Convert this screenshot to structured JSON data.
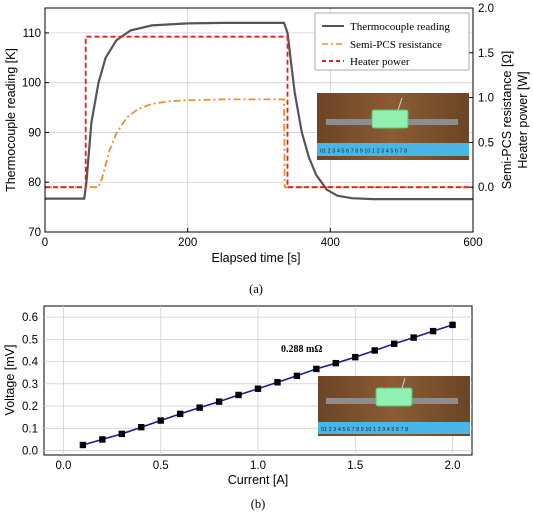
{
  "chart_data": [
    {
      "type": "line",
      "panel_label": "(a)",
      "xlabel": "Elapsed time [s]",
      "ylabel_left": "Thermocouple reading [K]",
      "ylabel_right_1": "Semi-PCS resistance [Ω]",
      "ylabel_right_2": "Heater power [W]",
      "xlim": [
        0,
        600
      ],
      "ylim_left": [
        70,
        115
      ],
      "ylim_right": [
        -0.5,
        2.0
      ],
      "x_ticks": [
        "0",
        "200",
        "400",
        "600"
      ],
      "y_left_ticks": [
        "70",
        "80",
        "90",
        "100",
        "110"
      ],
      "y_right_ticks": [
        "0.0",
        "0.5",
        "1.0",
        "1.5",
        "2.0"
      ],
      "grid": true,
      "legend_position": "top-right",
      "inset_photo": true,
      "ruler_text": "01 2 3 4 5 6 7 8 9 10 1 2 3 4 5 6 7 8",
      "series": [
        {
          "name": "Thermocouple reading",
          "axis": "left",
          "color": "#555555",
          "style": "solid",
          "x": [
            0,
            55,
            58,
            65,
            75,
            85,
            100,
            120,
            150,
            200,
            250,
            300,
            335,
            340,
            345,
            350,
            360,
            370,
            380,
            395,
            410,
            430,
            460,
            500,
            550,
            600
          ],
          "y": [
            76.7,
            76.7,
            80,
            92,
            100,
            105,
            108.5,
            110.5,
            111.5,
            111.9,
            112.0,
            112.0,
            112.0,
            110,
            104,
            98,
            90,
            85,
            81.5,
            78.5,
            77.3,
            76.8,
            76.6,
            76.6,
            76.6,
            76.6
          ]
        },
        {
          "name": "Semi-PCS resistance",
          "axis": "right",
          "color": "#e69035",
          "style": "dashdot",
          "x": [
            0,
            75,
            80,
            90,
            100,
            115,
            130,
            150,
            175,
            200,
            250,
            300,
            335,
            336,
            400,
            600
          ],
          "y": [
            0.0,
            0.0,
            0.1,
            0.4,
            0.6,
            0.78,
            0.87,
            0.93,
            0.96,
            0.97,
            0.98,
            0.98,
            0.98,
            0.0,
            0.0,
            0.0
          ]
        },
        {
          "name": "Heater power",
          "axis": "right",
          "color": "#e02020",
          "style": "dashed",
          "x": [
            0,
            57,
            57,
            340,
            340,
            600
          ],
          "y": [
            0.0,
            0.0,
            1.68,
            1.68,
            0.0,
            0.0
          ]
        }
      ]
    },
    {
      "type": "scatter",
      "panel_label": "(b)",
      "xlabel": "Current [A]",
      "ylabel": "Voltage [mV]",
      "xlim": [
        -0.1,
        2.1
      ],
      "ylim": [
        -0.02,
        0.65
      ],
      "x_ticks": [
        "0.0",
        "0.5",
        "1.0",
        "1.5",
        "2.0"
      ],
      "y_ticks": [
        "0.0",
        "0.1",
        "0.2",
        "0.3",
        "0.4",
        "0.5",
        "0.6"
      ],
      "grid": true,
      "annotation": "0.288 mΩ",
      "inset_photo": true,
      "ruler_text": "01 2 3 4 5 6 7 8 9 10 1 2 3 4 5 6 7 8",
      "series": [
        {
          "color": "#1a1a9e",
          "marker_color": "#000000",
          "x": [
            0.1,
            0.2,
            0.3,
            0.4,
            0.5,
            0.6,
            0.7,
            0.8,
            0.9,
            1.0,
            1.1,
            1.2,
            1.3,
            1.4,
            1.5,
            1.6,
            1.7,
            1.8,
            1.9,
            2.0
          ],
          "y": [
            0.025,
            0.05,
            0.075,
            0.105,
            0.135,
            0.165,
            0.193,
            0.22,
            0.25,
            0.278,
            0.307,
            0.336,
            0.367,
            0.393,
            0.42,
            0.45,
            0.48,
            0.508,
            0.537,
            0.565
          ]
        }
      ]
    }
  ]
}
